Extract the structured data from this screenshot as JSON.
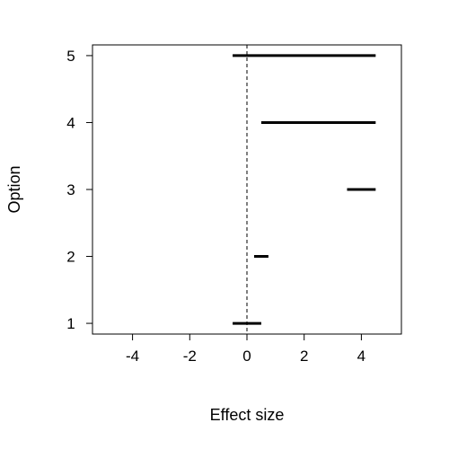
{
  "chart_data": {
    "type": "interval",
    "title": "",
    "xlabel": "Effect size",
    "ylabel": "Option",
    "xlim": [
      -5.4,
      5.4
    ],
    "ylim": [
      0.84,
      5.16
    ],
    "xticks": [
      -4,
      -2,
      0,
      2,
      4
    ],
    "xtick_labels": [
      "-4",
      "-2",
      "0",
      "2",
      "4"
    ],
    "yticks": [
      1,
      2,
      3,
      4,
      5
    ],
    "ytick_labels": [
      "1",
      "2",
      "3",
      "4",
      "5"
    ],
    "reference_line": {
      "x": 0,
      "style": "dashed"
    },
    "grid": false,
    "legend": "none",
    "intervals": [
      {
        "option": 1,
        "low": -0.5,
        "high": 0.5
      },
      {
        "option": 2,
        "low": 0.25,
        "high": 0.75
      },
      {
        "option": 3,
        "low": 3.5,
        "high": 4.5
      },
      {
        "option": 4,
        "low": 0.5,
        "high": 4.5
      },
      {
        "option": 5,
        "low": -0.5,
        "high": 4.5
      }
    ],
    "colors": {
      "interval": "#000000",
      "axis": "#000000"
    }
  }
}
